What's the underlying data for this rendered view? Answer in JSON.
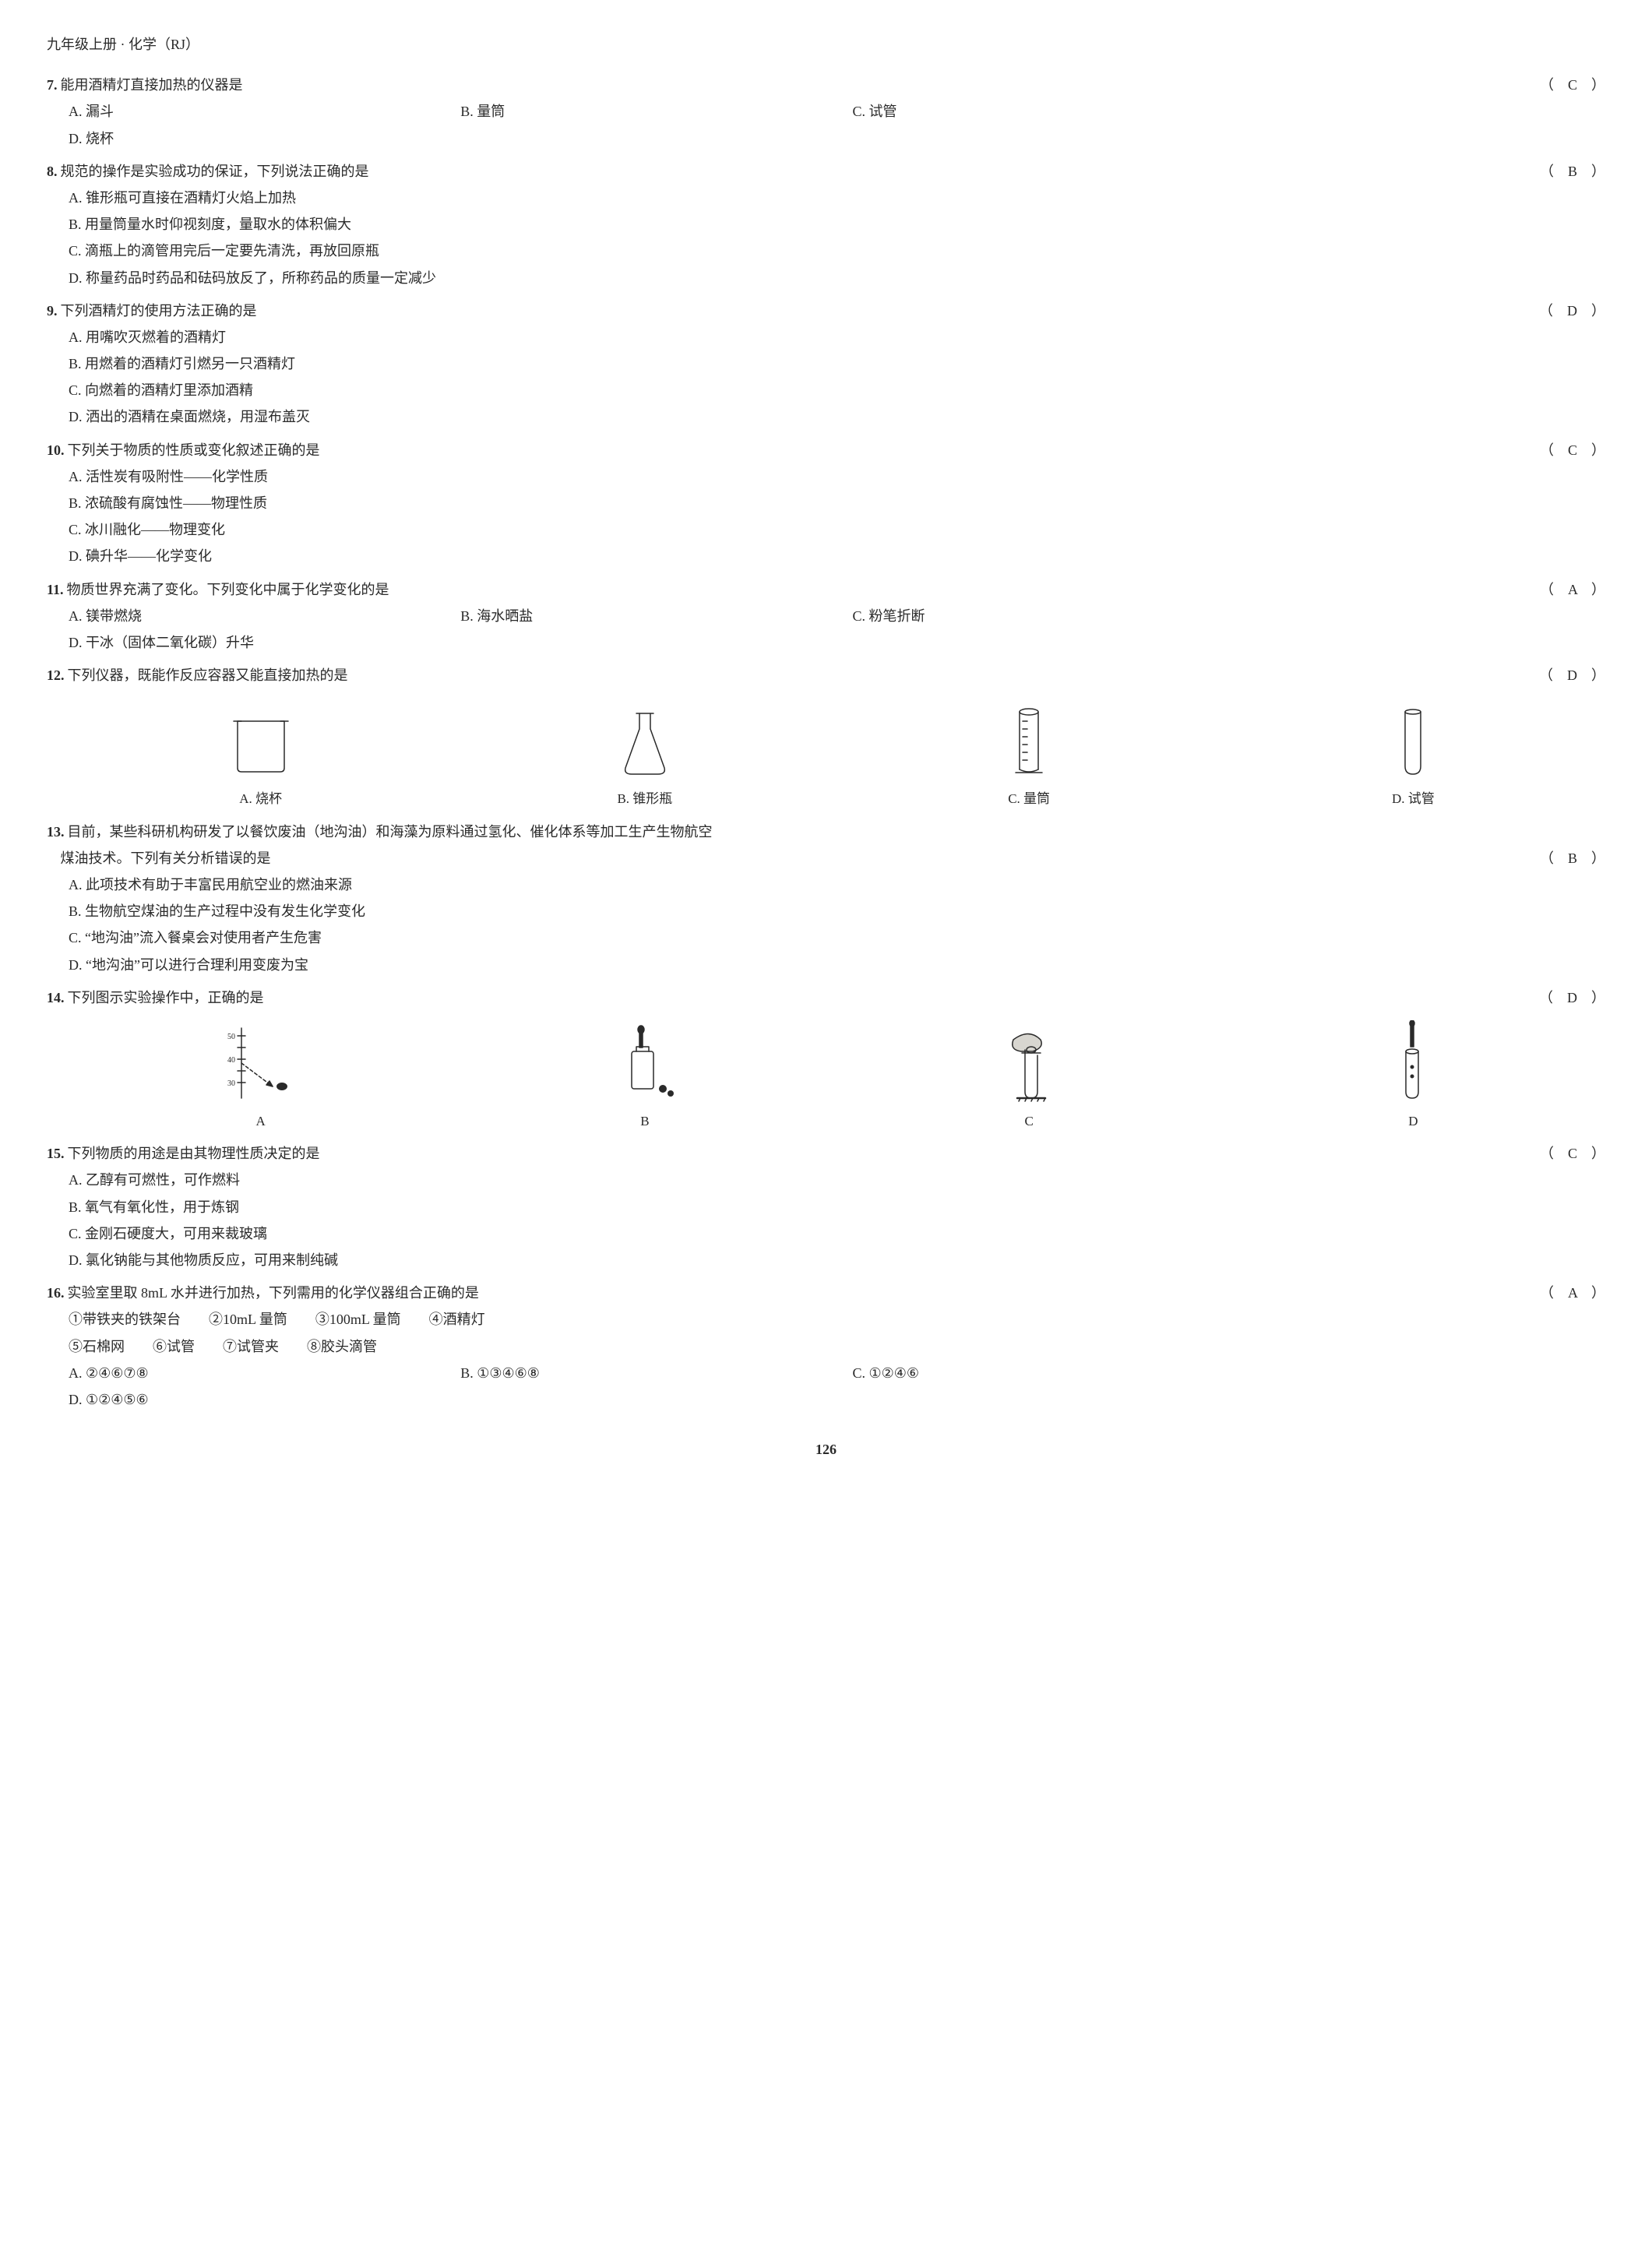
{
  "header": "九年级上册 · 化学（RJ）",
  "page_number": "126",
  "answer_style": {
    "left_paren": "（",
    "right_paren": "）"
  },
  "questions": [
    {
      "num": "7.",
      "stem": "能用酒精灯直接加热的仪器是",
      "answer": "C",
      "layout": "four",
      "options": [
        {
          "label": "A.",
          "text": "漏斗"
        },
        {
          "label": "B.",
          "text": "量筒"
        },
        {
          "label": "C.",
          "text": "试管"
        },
        {
          "label": "D.",
          "text": "烧杯"
        }
      ]
    },
    {
      "num": "8.",
      "stem": "规范的操作是实验成功的保证，下列说法正确的是",
      "answer": "B",
      "layout": "one",
      "options": [
        {
          "label": "A.",
          "text": "锥形瓶可直接在酒精灯火焰上加热"
        },
        {
          "label": "B.",
          "text": "用量筒量水时仰视刻度，量取水的体积偏大"
        },
        {
          "label": "C.",
          "text": "滴瓶上的滴管用完后一定要先清洗，再放回原瓶"
        },
        {
          "label": "D.",
          "text": "称量药品时药品和砝码放反了，所称药品的质量一定减少"
        }
      ]
    },
    {
      "num": "9.",
      "stem": "下列酒精灯的使用方法正确的是",
      "answer": "D",
      "layout": "two",
      "options": [
        {
          "label": "A.",
          "text": "用嘴吹灭燃着的酒精灯"
        },
        {
          "label": "B.",
          "text": "用燃着的酒精灯引燃另一只酒精灯"
        },
        {
          "label": "C.",
          "text": "向燃着的酒精灯里添加酒精"
        },
        {
          "label": "D.",
          "text": "洒出的酒精在桌面燃烧，用湿布盖灭"
        }
      ]
    },
    {
      "num": "10.",
      "stem": "下列关于物质的性质或变化叙述正确的是",
      "answer": "C",
      "layout": "two",
      "options": [
        {
          "label": "A.",
          "text": "活性炭有吸附性——化学性质"
        },
        {
          "label": "B.",
          "text": "浓硫酸有腐蚀性——物理性质"
        },
        {
          "label": "C.",
          "text": "冰川融化——物理变化"
        },
        {
          "label": "D.",
          "text": "碘升华——化学变化"
        }
      ]
    },
    {
      "num": "11.",
      "stem": "物质世界充满了变化。下列变化中属于化学变化的是",
      "answer": "A",
      "layout": "four",
      "options": [
        {
          "label": "A.",
          "text": "镁带燃烧"
        },
        {
          "label": "B.",
          "text": "海水晒盐"
        },
        {
          "label": "C.",
          "text": "粉笔折断"
        },
        {
          "label": "D.",
          "text": "干冰（固体二氧化碳）升华"
        }
      ]
    },
    {
      "num": "12.",
      "stem": "下列仪器，既能作反应容器又能直接加热的是",
      "answer": "D",
      "layout": "image",
      "image_options": [
        {
          "label": "A. 烧杯",
          "icon": "beaker"
        },
        {
          "label": "B. 锥形瓶",
          "icon": "flask"
        },
        {
          "label": "C. 量筒",
          "icon": "cylinder"
        },
        {
          "label": "D. 试管",
          "icon": "testtube"
        }
      ]
    },
    {
      "num": "13.",
      "stem_lines": [
        "目前，某些科研机构研发了以餐饮废油（地沟油）和海藻为原料通过氢化、催化体系等加工生产生物航空",
        "煤油技术。下列有关分析错误的是"
      ],
      "answer": "B",
      "layout": "two",
      "options": [
        {
          "label": "A.",
          "text": "此项技术有助于丰富民用航空业的燃油来源"
        },
        {
          "label": "B.",
          "text": "生物航空煤油的生产过程中没有发生化学变化"
        },
        {
          "label": "C.",
          "text": "“地沟油”流入餐桌会对使用者产生危害"
        },
        {
          "label": "D.",
          "text": "“地沟油”可以进行合理利用变废为宝"
        }
      ]
    },
    {
      "num": "14.",
      "stem": "下列图示实验操作中，正确的是",
      "answer": "D",
      "layout": "image",
      "image_options": [
        {
          "label": "A",
          "icon": "scale-read"
        },
        {
          "label": "B",
          "icon": "dropper-bottle"
        },
        {
          "label": "C",
          "icon": "hand-tube"
        },
        {
          "label": "D",
          "icon": "dropper-tube"
        }
      ]
    },
    {
      "num": "15.",
      "stem": "下列物质的用途是由其物理性质决定的是",
      "answer": "C",
      "layout": "two",
      "options": [
        {
          "label": "A.",
          "text": "乙醇有可燃性，可作燃料"
        },
        {
          "label": "B.",
          "text": "氧气有氧化性，用于炼钢"
        },
        {
          "label": "C.",
          "text": "金刚石硬度大，可用来裁玻璃"
        },
        {
          "label": "D.",
          "text": "氯化钠能与其他物质反应，可用来制纯碱"
        }
      ]
    },
    {
      "num": "16.",
      "stem": "实验室里取 8mL 水并进行加热，下列需用的化学仪器组合正确的是",
      "answer": "A",
      "roman_items": [
        "①带铁夹的铁架台　　②10mL 量筒　　③100mL 量筒　　④酒精灯",
        "⑤石棉网　　⑥试管　　⑦试管夹　　⑧胶头滴管"
      ],
      "layout": "four",
      "options": [
        {
          "label": "A.",
          "text": "②④⑥⑦⑧"
        },
        {
          "label": "B.",
          "text": "①③④⑥⑧"
        },
        {
          "label": "C.",
          "text": "①②④⑥"
        },
        {
          "label": "D.",
          "text": "①②④⑤⑥"
        }
      ]
    }
  ],
  "svg": {
    "stroke": "#2a2a2a",
    "stroke_width": 1.5,
    "width": 110,
    "height": 110
  }
}
